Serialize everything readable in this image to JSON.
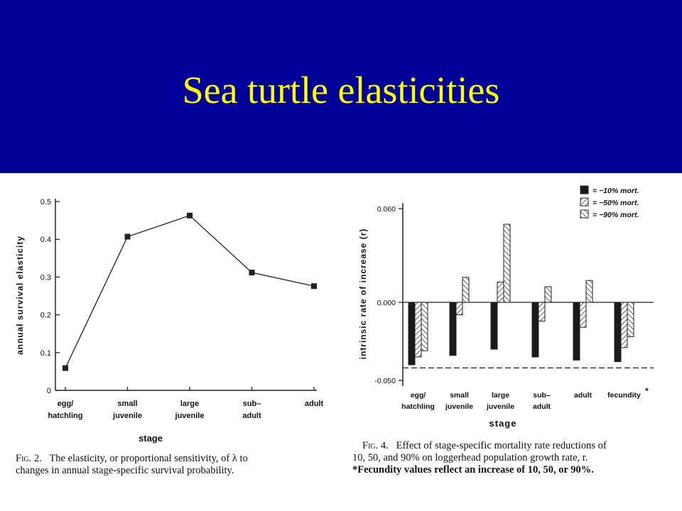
{
  "slide": {
    "title": "Sea turtle elasticities",
    "band_color": "#000099",
    "title_color": "#ffff00"
  },
  "fig2": {
    "caption_label": "Fig. 2.",
    "caption_line1": "The elasticity, or proportional sensitivity, of λ to",
    "caption_line2": "changes in annual stage-specific survival probability."
  },
  "fig4": {
    "caption_label": "Fig. 4.",
    "caption_line1": "Effect of stage-specific mortality rate reductions of",
    "caption_line2": "10, 50, and 90% on loggerhead population growth rate, r.",
    "caption_line3": "*Fecundity values reflect an increase of 10, 50, or 90%."
  },
  "chart_data": [
    {
      "type": "line",
      "xlabel": "stage",
      "ylabel": "annual survival elasticity",
      "categories": [
        [
          "egg/",
          "hatchling"
        ],
        [
          "small",
          "juvenile"
        ],
        [
          "large",
          "juvenile"
        ],
        [
          "sub–",
          "adult"
        ],
        [
          "adult"
        ]
      ],
      "values": [
        0.059,
        0.407,
        0.463,
        0.312,
        0.276
      ],
      "ylim": [
        0,
        0.5
      ],
      "yticks": [
        "0",
        "0.1",
        "0.2",
        "0.3",
        "0.4",
        "0.5"
      ],
      "grid": false,
      "marker": "square"
    },
    {
      "type": "bar",
      "xlabel": "stage",
      "ylabel": "intrinsic rate of increase (r)",
      "categories": [
        [
          "egg/",
          "hatchling"
        ],
        [
          "small",
          "juvenile"
        ],
        [
          "large",
          "juvenile"
        ],
        [
          "sub–",
          "adult"
        ],
        [
          "adult"
        ],
        [
          "fecundity",
          "*"
        ]
      ],
      "series": [
        {
          "name": "= −10% mort.",
          "pattern": "solid",
          "values": [
            -0.04,
            -0.034,
            -0.03,
            -0.035,
            -0.037,
            -0.038
          ]
        },
        {
          "name": "= −50% mort.",
          "pattern": "hatch-forward",
          "values": [
            -0.035,
            -0.008,
            0.013,
            -0.012,
            -0.016,
            -0.029
          ]
        },
        {
          "name": "= −90% mort.",
          "pattern": "hatch-back",
          "values": [
            -0.031,
            0.016,
            0.05,
            0.01,
            0.014,
            -0.022
          ]
        }
      ],
      "ylim": [
        -0.05,
        0.06
      ],
      "yticks": [
        "-0.050",
        "0.000",
        "0.060"
      ],
      "reference_line": -0.042,
      "grid": false,
      "legend_position": "top-right"
    }
  ]
}
